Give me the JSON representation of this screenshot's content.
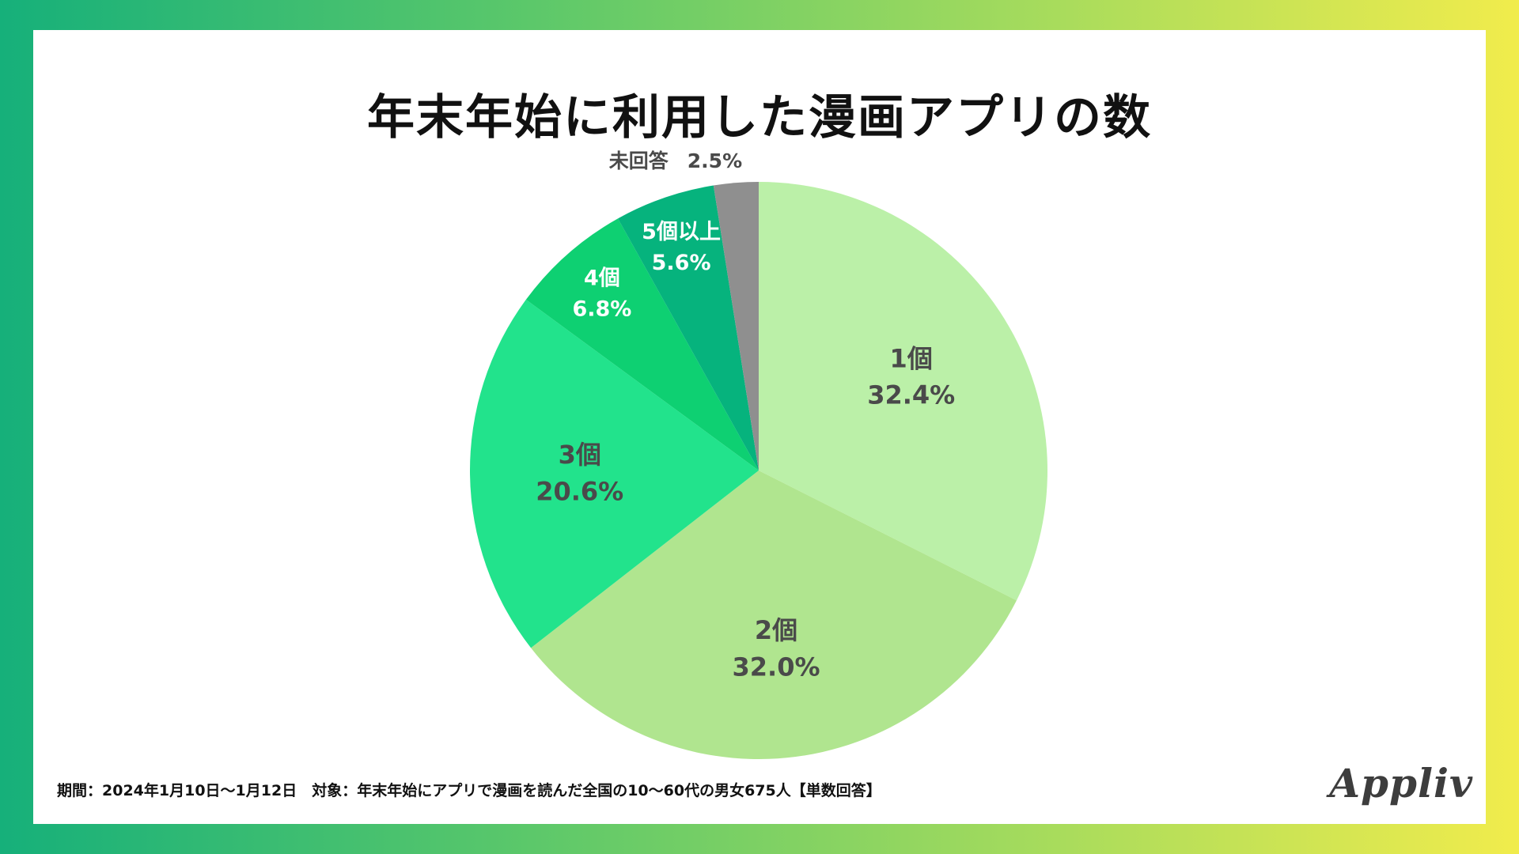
{
  "chart_data": {
    "type": "pie",
    "title": "年末年始に利用した漫画アプリの数",
    "slices": [
      {
        "label": "1個",
        "value": 32.4,
        "value_label": "32.4%",
        "color": "#bbf0a8",
        "text_color": "#4a4a4a"
      },
      {
        "label": "2個",
        "value": 32.0,
        "value_label": "32.0%",
        "color": "#b0e58f",
        "text_color": "#4a4a4a"
      },
      {
        "label": "3個",
        "value": 20.6,
        "value_label": "20.6%",
        "color": "#22e38c",
        "text_color": "#4a4a4a"
      },
      {
        "label": "4個",
        "value": 6.8,
        "value_label": "6.8%",
        "color": "#0ed072",
        "text_color": "#ffffff"
      },
      {
        "label": "5個以上",
        "value": 5.6,
        "value_label": "5.6%",
        "color": "#06b37d",
        "text_color": "#ffffff"
      },
      {
        "label": "未回答",
        "value": 2.5,
        "value_label": "2.5%",
        "color": "#8f8f8f",
        "text_color": "#4a4a4a"
      }
    ],
    "start": "12 o'clock",
    "direction": "clockwise"
  },
  "footnote": "期間：2024年1月10日〜1月12日　対象：年末年始にアプリで漫画を読んだ全国の10〜60代の男女675人【単数回答】",
  "logo": "Appliv"
}
